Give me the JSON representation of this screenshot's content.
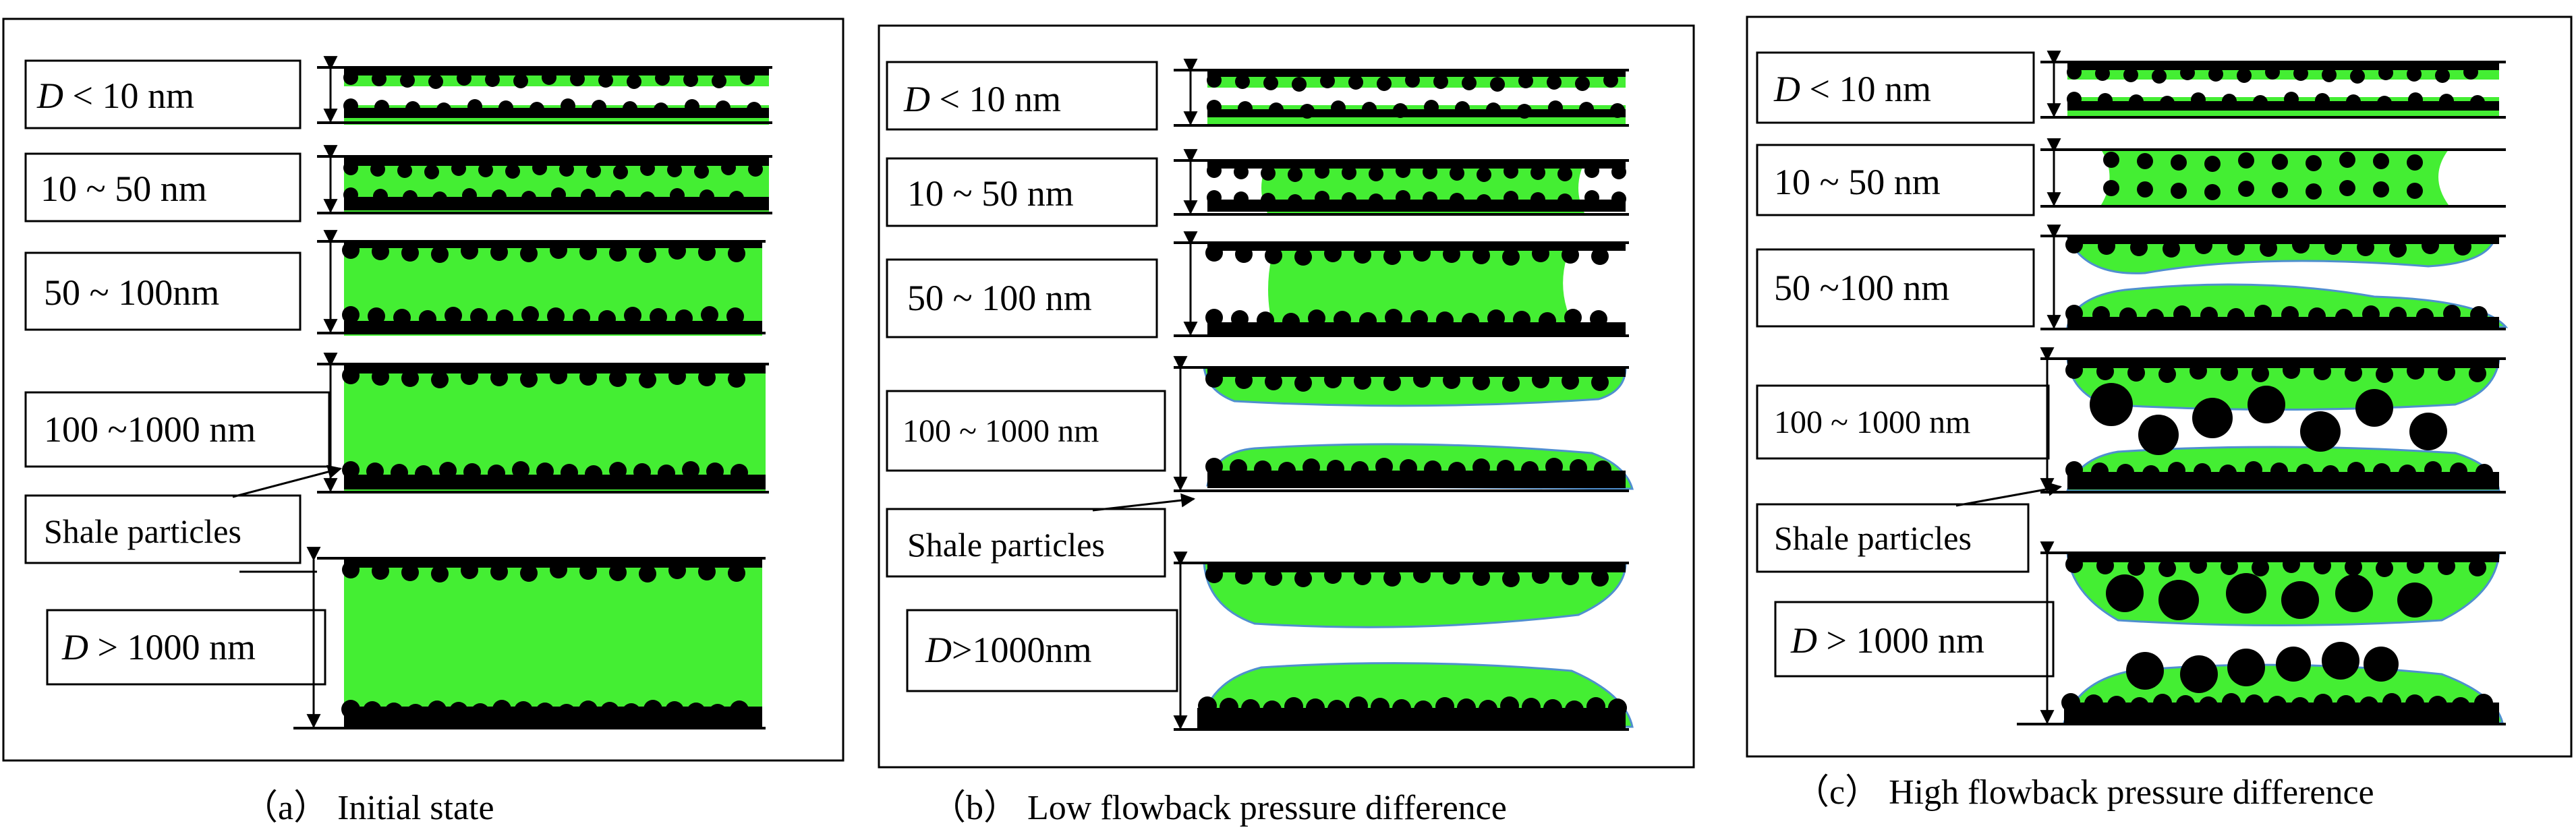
{
  "colors": {
    "fluid": "#44ee33",
    "particle": "#000000",
    "interface_line": "#4f8fcf",
    "frame": "#000000",
    "background": "#ffffff"
  },
  "panels": [
    {
      "caption": "（a） Initial state",
      "labels": {
        "d1_sym": "D",
        "d1_rest": " < 10 nm",
        "d2": "10 ~ 50 nm",
        "d3": "50 ~ 100nm",
        "d4": "100 ~1000 nm",
        "shale": "Shale particles",
        "d5_sym": "D",
        "d5_rest": " > 1000 nm"
      }
    },
    {
      "caption": "（b） Low flowback pressure difference",
      "labels": {
        "d1_sym": "D",
        "d1_rest": " < 10 nm",
        "d2": "10 ~ 50 nm",
        "d3": "50 ~ 100 nm",
        "d4": "100 ~ 1000 nm",
        "shale": "Shale particles",
        "d5_sym": "D",
        "d5_rest": ">1000nm"
      }
    },
    {
      "caption": "（c） High flowback pressure difference",
      "labels": {
        "d1_sym": "D",
        "d1_rest": " < 10 nm",
        "d2": "10 ~ 50 nm",
        "d3": "50 ~100 nm",
        "d4": "100 ~ 1000 nm",
        "shale": "Shale particles",
        "d5_sym": "D",
        "d5_rest": " > 1000 nm"
      }
    }
  ]
}
